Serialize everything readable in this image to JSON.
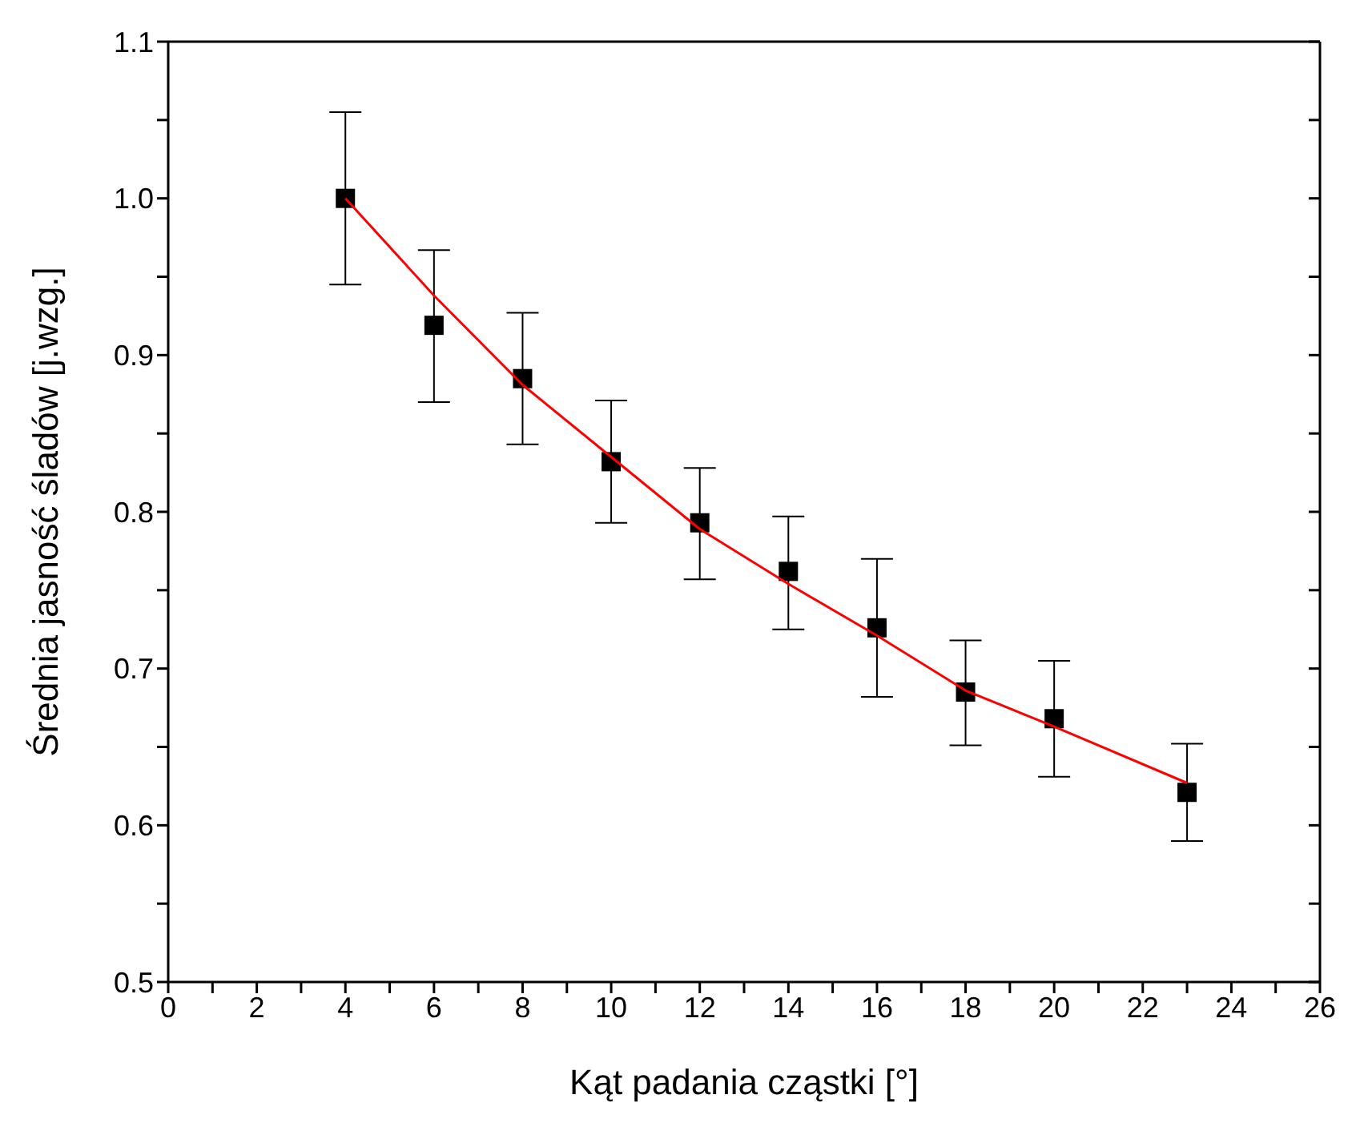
{
  "chart_data": {
    "type": "scatter",
    "xlabel": "Kąt padania cząstki [°]",
    "ylabel": "Średnia jasność śladów [j.wzg.]",
    "xlim": [
      0,
      26
    ],
    "ylim": [
      0.5,
      1.1
    ],
    "xticks": [
      0,
      {
        "value": 1,
        "label": null
      },
      2,
      {
        "value": 3,
        "label": null
      },
      4,
      {
        "value": 5,
        "label": null
      },
      6,
      {
        "value": 7,
        "label": null
      },
      8,
      {
        "value": 9,
        "label": null
      },
      10,
      {
        "value": 11,
        "label": null
      },
      12,
      {
        "value": 13,
        "label": null
      },
      14,
      {
        "value": 15,
        "label": null
      },
      16,
      {
        "value": 17,
        "label": null
      },
      18,
      {
        "value": 19,
        "label": null
      },
      20,
      {
        "value": 21,
        "label": null
      },
      22,
      {
        "value": 23,
        "label": null
      },
      24,
      {
        "value": 25,
        "label": null
      },
      26
    ],
    "yticks": [
      0.5,
      {
        "value": 0.55,
        "label": null
      },
      0.6,
      {
        "value": 0.65,
        "label": null
      },
      0.7,
      {
        "value": 0.75,
        "label": null
      },
      0.8,
      {
        "value": 0.85,
        "label": null
      },
      0.9,
      {
        "value": 0.95,
        "label": null
      },
      {
        "value": 1.0,
        "label": "1.0"
      },
      {
        "value": 1.05,
        "label": null
      },
      1.1
    ],
    "series": [
      {
        "marker": "square",
        "color": "#000000",
        "x": [
          4,
          6,
          8,
          10,
          12,
          14,
          16,
          18,
          20,
          23
        ],
        "values": [
          1.0,
          0.919,
          0.885,
          0.832,
          0.793,
          0.762,
          0.726,
          0.685,
          0.668,
          0.621
        ],
        "errors": [
          [
            0.945,
            1.055
          ],
          [
            0.87,
            0.967
          ],
          [
            0.843,
            0.927
          ],
          [
            0.793,
            0.871
          ],
          [
            0.757,
            0.828
          ],
          [
            0.725,
            0.797
          ],
          [
            0.682,
            0.77
          ],
          [
            0.651,
            0.718
          ],
          [
            0.631,
            0.705
          ],
          [
            0.59,
            0.652
          ]
        ]
      },
      {
        "type": "line",
        "marker": "none",
        "line_style": "solid",
        "color": "#ff0000",
        "x": [
          4,
          6,
          8,
          10,
          12,
          14,
          16,
          18,
          20,
          23
        ],
        "values": [
          1.0,
          0.938,
          0.881,
          0.835,
          0.789,
          0.754,
          0.721,
          0.686,
          0.663,
          0.627
        ]
      }
    ]
  }
}
